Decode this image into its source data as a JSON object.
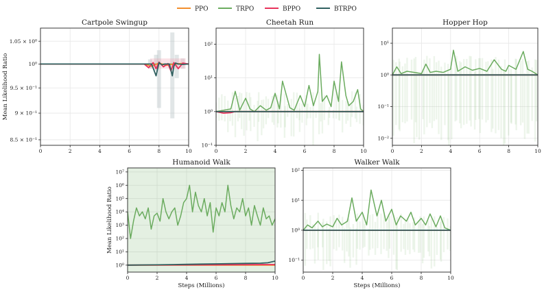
{
  "legend": [
    {
      "name": "PPO",
      "color": "#f28e2b"
    },
    {
      "name": "TRPO",
      "color": "#6aab5e"
    },
    {
      "name": "BPPO",
      "color": "#e8315a"
    },
    {
      "name": "BTRPO",
      "color": "#2f5f5f"
    }
  ],
  "chart_data": [
    {
      "type": "line",
      "title": "Cartpole Swingup",
      "xlabel": "",
      "ylabel": "Mean Likelihood Ratio",
      "xlim": [
        0,
        10
      ],
      "ylim": [
        0.84,
        1.08
      ],
      "yscale": "log",
      "xticks": [
        "0",
        "2",
        "4",
        "6",
        "8",
        "10"
      ],
      "yticks": [
        {
          "v": 0.85,
          "t": "8.5 × 10⁻¹"
        },
        {
          "v": 0.9,
          "t": "9 × 10⁻¹"
        },
        {
          "v": 0.95,
          "t": "9.5 × 10⁻¹"
        },
        {
          "v": 1.0,
          "t": "10⁰"
        },
        {
          "v": 1.05,
          "t": "1.05 × 10⁰"
        }
      ],
      "series": [
        {
          "name": "PPO",
          "x": [
            0,
            2,
            4,
            6,
            7.0,
            7.5,
            8.0,
            8.5,
            9.0,
            9.5,
            10
          ],
          "y": [
            1.0,
            1.0,
            1.0,
            1.0,
            1.0,
            0.995,
            1.002,
            0.997,
            1.0,
            1.001,
            1.0
          ]
        },
        {
          "name": "TRPO",
          "x": [
            0,
            2,
            4,
            6,
            8,
            10
          ],
          "y": [
            1.0,
            1.0,
            1.0,
            1.0,
            1.0,
            1.0
          ]
        },
        {
          "name": "BPPO",
          "x": [
            0,
            7.0,
            7.3,
            7.6,
            7.8,
            8.0,
            8.3,
            8.6,
            8.8,
            9.0,
            9.3,
            9.6,
            10
          ],
          "y": [
            1.0,
            1.0,
            0.992,
            1.003,
            0.99,
            1.004,
            0.994,
            1.001,
            0.985,
            1.003,
            0.99,
            1.002,
            1.0
          ]
        },
        {
          "name": "BTRPO",
          "x": [
            0,
            7.5,
            7.8,
            8.0,
            8.2,
            8.4,
            8.7,
            8.9,
            9.0,
            9.1,
            9.3,
            9.6,
            10
          ],
          "y": [
            1.0,
            1.0,
            0.975,
            1.003,
            0.998,
            1.0,
            1.0,
            0.975,
            0.995,
            1.002,
            1.0,
            0.999,
            1.0
          ]
        }
      ]
    },
    {
      "type": "line",
      "title": "Cheetah Run",
      "xlabel": "",
      "ylabel": "",
      "xlim": [
        0,
        10
      ],
      "ylim": [
        0.1,
        300
      ],
      "yscale": "log",
      "xticks": [
        "0",
        "2",
        "4",
        "6",
        "8",
        "10"
      ],
      "yticks": [
        {
          "v": 0.1,
          "t": "10⁻¹"
        },
        {
          "v": 1,
          "t": "10⁰"
        },
        {
          "v": 10,
          "t": "10¹"
        },
        {
          "v": 100,
          "t": "10²"
        }
      ],
      "series": [
        {
          "name": "PPO",
          "x": [
            0,
            10
          ],
          "y": [
            1.0,
            1.0
          ]
        },
        {
          "name": "TRPO",
          "x": [
            0,
            0.5,
            1.0,
            1.3,
            1.6,
            2.0,
            2.3,
            2.6,
            3.0,
            3.4,
            3.7,
            4.0,
            4.3,
            4.5,
            5.0,
            5.3,
            5.7,
            6.0,
            6.3,
            6.6,
            6.9,
            7.0,
            7.2,
            7.5,
            7.8,
            8.0,
            8.3,
            8.5,
            8.8,
            9.0,
            9.3,
            9.6,
            9.8,
            10
          ],
          "y": [
            1.0,
            1.1,
            1.2,
            4.0,
            1.1,
            2.5,
            1.2,
            1.0,
            1.5,
            1.1,
            1.3,
            3.5,
            1.2,
            8.0,
            1.3,
            1.1,
            3.0,
            1.4,
            6.0,
            1.5,
            4.0,
            50,
            2.0,
            3.0,
            1.4,
            8.0,
            2.0,
            30,
            3.0,
            1.5,
            2.0,
            4.5,
            1.2,
            1.0
          ]
        },
        {
          "name": "BPPO",
          "x": [
            0,
            0.5,
            1.0,
            1.3,
            10
          ],
          "y": [
            1.0,
            0.9,
            0.93,
            1.0,
            1.0
          ]
        },
        {
          "name": "BTRPO",
          "x": [
            0,
            10
          ],
          "y": [
            1.0,
            1.0
          ]
        }
      ]
    },
    {
      "type": "line",
      "title": "Hopper Hop",
      "xlabel": "",
      "ylabel": "",
      "xlim": [
        0,
        10
      ],
      "ylim": [
        0.006,
        30
      ],
      "yscale": "log",
      "xticks": [
        "0",
        "2",
        "4",
        "6",
        "8",
        "10"
      ],
      "yticks": [
        {
          "v": 0.01,
          "t": "10⁻²"
        },
        {
          "v": 0.1,
          "t": "10⁻¹"
        },
        {
          "v": 1,
          "t": "10⁰"
        },
        {
          "v": 10,
          "t": "10¹"
        }
      ],
      "series": [
        {
          "name": "PPO",
          "x": [
            0,
            10
          ],
          "y": [
            1.0,
            1.0
          ]
        },
        {
          "name": "TRPO",
          "x": [
            0,
            0.3,
            0.6,
            1.0,
            1.5,
            2.0,
            2.3,
            2.6,
            3.0,
            3.5,
            4.0,
            4.2,
            4.5,
            5.0,
            5.5,
            6.0,
            6.5,
            7.0,
            7.5,
            7.8,
            8.0,
            8.5,
            9.0,
            9.3,
            9.6,
            10
          ],
          "y": [
            1.0,
            1.8,
            1.1,
            1.3,
            1.2,
            1.1,
            2.2,
            1.2,
            1.3,
            1.2,
            1.5,
            6.0,
            1.3,
            1.8,
            1.4,
            1.6,
            1.3,
            3.0,
            1.5,
            1.3,
            2.0,
            1.5,
            5.5,
            1.5,
            1.3,
            1.0
          ]
        },
        {
          "name": "BPPO",
          "x": [
            0,
            10
          ],
          "y": [
            1.0,
            1.0
          ]
        },
        {
          "name": "BTRPO",
          "x": [
            0,
            10
          ],
          "y": [
            1.0,
            1.0
          ]
        }
      ]
    },
    {
      "type": "line",
      "title": "Humanoid Walk",
      "xlabel": "Steps (Millions)",
      "ylabel": "Mean Likelihood Ratio",
      "xlim": [
        0,
        10
      ],
      "ylim": [
        0.3,
        20000000
      ],
      "yscale": "log",
      "xticks": [
        "0",
        "2",
        "4",
        "6",
        "8",
        "10"
      ],
      "yticks": [
        {
          "v": 1,
          "t": "10⁰"
        },
        {
          "v": 10,
          "t": "10¹"
        },
        {
          "v": 100,
          "t": "10²"
        },
        {
          "v": 1000,
          "t": "10³"
        },
        {
          "v": 10000,
          "t": "10⁴"
        },
        {
          "v": 100000,
          "t": "10⁵"
        },
        {
          "v": 1000000,
          "t": "10⁶"
        },
        {
          "v": 10000000,
          "t": "10⁷"
        }
      ],
      "series": [
        {
          "name": "PPO",
          "x": [
            0,
            10
          ],
          "y": [
            1.0,
            1.0
          ]
        },
        {
          "name": "TRPO",
          "x": [
            0,
            0.2,
            0.4,
            0.6,
            0.8,
            1.0,
            1.2,
            1.4,
            1.6,
            1.8,
            2.0,
            2.2,
            2.4,
            2.6,
            2.8,
            3.0,
            3.2,
            3.4,
            3.6,
            3.8,
            4.0,
            4.2,
            4.4,
            4.6,
            4.8,
            5.0,
            5.2,
            5.4,
            5.6,
            5.8,
            6.0,
            6.2,
            6.4,
            6.6,
            6.8,
            7.0,
            7.2,
            7.4,
            7.6,
            7.8,
            8.0,
            8.2,
            8.4,
            8.6,
            8.8,
            9.0,
            9.2,
            9.4,
            9.6,
            9.8,
            10
          ],
          "y": [
            10000,
            100,
            2000,
            20000,
            5000,
            10000,
            3000,
            20000,
            500,
            5000,
            8000,
            2000,
            100000,
            10000,
            3000,
            10000,
            20000,
            1000,
            5000,
            50000,
            100000,
            1000000,
            10000,
            300000,
            30000,
            10000,
            100000,
            5000,
            50000,
            300,
            20000,
            5000,
            50000,
            10000,
            1000000,
            30000,
            3000,
            20000,
            10000,
            100000,
            5000,
            20000,
            1000,
            30000,
            5000,
            1000,
            20000,
            3000,
            5000,
            1000,
            3000
          ]
        },
        {
          "name": "BPPO",
          "x": [
            0,
            10
          ],
          "y": [
            1.0,
            1.1
          ]
        },
        {
          "name": "BTRPO",
          "x": [
            0,
            2,
            4,
            5,
            6,
            7,
            8,
            9,
            9.5,
            10
          ],
          "y": [
            1.0,
            1.05,
            1.15,
            1.2,
            1.25,
            1.3,
            1.35,
            1.4,
            1.5,
            2.0
          ]
        }
      ]
    },
    {
      "type": "line",
      "title": "Walker Walk",
      "xlabel": "Steps (Millions)",
      "ylabel": "",
      "xlim": [
        0,
        10
      ],
      "ylim": [
        0.04,
        120
      ],
      "yscale": "log",
      "xticks": [
        "0",
        "2",
        "4",
        "6",
        "8",
        "10"
      ],
      "yticks": [
        {
          "v": 0.1,
          "t": "10⁻¹"
        },
        {
          "v": 1,
          "t": "10⁰"
        },
        {
          "v": 10,
          "t": "10¹"
        },
        {
          "v": 100,
          "t": "10²"
        }
      ],
      "series": [
        {
          "name": "PPO",
          "x": [
            0,
            10
          ],
          "y": [
            1.0,
            1.0
          ]
        },
        {
          "name": "TRPO",
          "x": [
            0,
            0.3,
            0.6,
            1.0,
            1.3,
            1.6,
            2.0,
            2.3,
            2.6,
            3.0,
            3.3,
            3.6,
            4.0,
            4.3,
            4.6,
            5.0,
            5.3,
            5.6,
            6.0,
            6.3,
            6.6,
            7.0,
            7.3,
            7.6,
            8.0,
            8.3,
            8.6,
            9.0,
            9.3,
            9.6,
            10
          ],
          "y": [
            1.0,
            1.5,
            1.2,
            2.0,
            1.3,
            1.6,
            1.3,
            2.5,
            1.5,
            2.0,
            12,
            2.0,
            4.0,
            1.5,
            22,
            3.0,
            10,
            2.0,
            5.0,
            1.5,
            3.0,
            2.0,
            4.0,
            1.5,
            2.5,
            1.5,
            3.5,
            1.3,
            3.0,
            1.2,
            1.0
          ]
        },
        {
          "name": "BPPO",
          "x": [
            0,
            10
          ],
          "y": [
            1.0,
            1.0
          ]
        },
        {
          "name": "BTRPO",
          "x": [
            0,
            10
          ],
          "y": [
            1.0,
            1.0
          ]
        }
      ]
    }
  ]
}
